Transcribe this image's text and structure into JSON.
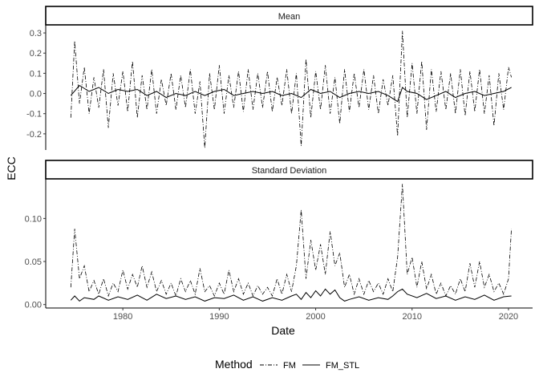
{
  "chart_data": {
    "type": "line",
    "xlabel": "Date",
    "ylabel": "ECC",
    "x_ticks": [
      "1980",
      "1990",
      "2000",
      "2010",
      "2020"
    ],
    "xlim": [
      1972.0,
      2022.5
    ],
    "legend": {
      "title": "Method",
      "position": "bottom",
      "entries": [
        {
          "name": "FM",
          "linestyle": "dashdot"
        },
        {
          "name": "FM_STL",
          "linestyle": "solid"
        }
      ]
    },
    "grid": false,
    "panels": [
      {
        "strip": "Mean",
        "ylim": [
          -0.28,
          0.34
        ],
        "y_ticks": [
          "0.3",
          "0.2",
          "0.1",
          "0.0",
          "-0.1",
          "-0.2"
        ],
        "y_tick_values": [
          0.3,
          0.2,
          0.1,
          0.0,
          -0.1,
          -0.2
        ],
        "series": [
          {
            "name": "FM",
            "x": [
              1974.6,
              1975.0,
              1975.5,
              1976.0,
              1976.5,
              1977.0,
              1977.5,
              1978.0,
              1978.5,
              1979.0,
              1979.5,
              1980.0,
              1980.5,
              1981.0,
              1981.5,
              1982.0,
              1982.5,
              1983.0,
              1983.5,
              1984.0,
              1984.5,
              1985.0,
              1985.5,
              1986.0,
              1986.5,
              1987.0,
              1987.5,
              1988.0,
              1988.5,
              1989.0,
              1989.5,
              1990.0,
              1990.5,
              1991.0,
              1991.5,
              1992.0,
              1992.5,
              1993.0,
              1993.5,
              1994.0,
              1994.5,
              1995.0,
              1995.5,
              1996.0,
              1996.5,
              1997.0,
              1997.5,
              1998.0,
              1998.5,
              1999.0,
              1999.5,
              2000.0,
              2000.5,
              2001.0,
              2001.5,
              2002.0,
              2002.5,
              2003.0,
              2003.5,
              2004.0,
              2004.5,
              2005.0,
              2005.5,
              2006.0,
              2006.5,
              2007.0,
              2007.5,
              2008.0,
              2008.5,
              2009.0,
              2009.5,
              2010.0,
              2010.5,
              2011.0,
              2011.5,
              2012.0,
              2012.5,
              2013.0,
              2013.5,
              2014.0,
              2014.5,
              2015.0,
              2015.5,
              2016.0,
              2016.5,
              2017.0,
              2017.5,
              2018.0,
              2018.5,
              2019.0,
              2019.5,
              2020.0,
              2020.3
            ],
            "y": [
              -0.12,
              0.26,
              -0.05,
              0.13,
              -0.1,
              0.08,
              -0.07,
              0.12,
              -0.17,
              0.1,
              -0.06,
              0.11,
              -0.09,
              0.16,
              -0.12,
              0.09,
              -0.08,
              0.12,
              -0.1,
              0.07,
              -0.06,
              0.1,
              -0.08,
              0.09,
              -0.07,
              0.12,
              -0.1,
              0.06,
              -0.27,
              0.1,
              -0.08,
              0.14,
              -0.1,
              0.09,
              -0.07,
              0.11,
              -0.09,
              0.12,
              -0.08,
              0.1,
              -0.07,
              0.11,
              -0.09,
              0.08,
              -0.06,
              0.12,
              -0.1,
              0.1,
              -0.26,
              0.17,
              -0.12,
              0.11,
              -0.08,
              0.14,
              -0.1,
              0.08,
              -0.15,
              0.12,
              -0.09,
              0.1,
              -0.07,
              0.12,
              -0.08,
              0.09,
              -0.1,
              0.07,
              -0.06,
              0.09,
              -0.21,
              0.31,
              -0.12,
              0.15,
              -0.1,
              0.16,
              -0.18,
              0.12,
              -0.09,
              0.11,
              -0.08,
              0.1,
              -0.1,
              0.12,
              -0.11,
              0.11,
              -0.09,
              0.12,
              -0.1,
              0.09,
              -0.16,
              0.1,
              -0.08,
              0.13,
              0.08
            ]
          },
          {
            "name": "FM_STL",
            "x": [
              1974.6,
              1975.5,
              1976.5,
              1977.5,
              1978.5,
              1979.5,
              1980.5,
              1981.5,
              1982.5,
              1983.5,
              1984.5,
              1985.5,
              1986.5,
              1987.5,
              1988.5,
              1989.5,
              1990.5,
              1991.5,
              1992.5,
              1993.5,
              1994.5,
              1995.5,
              1996.5,
              1997.5,
              1998.5,
              1999.5,
              2000.5,
              2001.5,
              2002.5,
              2003.5,
              2004.5,
              2005.5,
              2006.5,
              2007.5,
              2008.5,
              2009.0,
              2009.5,
              2010.5,
              2011.5,
              2012.5,
              2013.5,
              2014.5,
              2015.5,
              2016.5,
              2017.5,
              2018.5,
              2019.5,
              2020.3
            ],
            "y": [
              -0.01,
              0.04,
              0.01,
              0.03,
              0.0,
              0.02,
              0.01,
              0.02,
              -0.01,
              0.01,
              -0.02,
              0.0,
              -0.01,
              0.01,
              -0.01,
              0.01,
              0.02,
              -0.01,
              0.0,
              0.01,
              0.0,
              0.01,
              -0.01,
              0.0,
              -0.02,
              0.02,
              0.0,
              0.01,
              -0.02,
              0.0,
              0.01,
              0.0,
              0.01,
              -0.01,
              -0.04,
              0.03,
              0.01,
              0.0,
              -0.03,
              -0.01,
              0.01,
              -0.02,
              0.0,
              0.01,
              -0.01,
              0.0,
              0.01,
              0.03
            ]
          }
        ]
      },
      {
        "strip": "Standard Deviation",
        "ylim": [
          -0.004,
          0.146
        ],
        "y_ticks": [
          "0.10",
          "0.05",
          "0.00"
        ],
        "y_tick_values": [
          0.1,
          0.05,
          0.0
        ],
        "series": [
          {
            "name": "FM",
            "x": [
              1974.6,
              1975.0,
              1975.5,
              1976.0,
              1976.5,
              1977.0,
              1977.5,
              1978.0,
              1978.5,
              1979.0,
              1979.5,
              1980.0,
              1980.5,
              1981.0,
              1981.5,
              1982.0,
              1982.5,
              1983.0,
              1983.5,
              1984.0,
              1984.5,
              1985.0,
              1985.5,
              1986.0,
              1986.5,
              1987.0,
              1987.5,
              1988.0,
              1988.5,
              1989.0,
              1989.5,
              1990.0,
              1990.5,
              1991.0,
              1991.5,
              1992.0,
              1992.5,
              1993.0,
              1993.5,
              1994.0,
              1994.5,
              1995.0,
              1995.5,
              1996.0,
              1996.5,
              1997.0,
              1997.5,
              1998.0,
              1998.5,
              1999.0,
              1999.5,
              2000.0,
              2000.5,
              2001.0,
              2001.5,
              2002.0,
              2002.5,
              2003.0,
              2003.5,
              2004.0,
              2004.5,
              2005.0,
              2005.5,
              2006.0,
              2006.5,
              2007.0,
              2007.5,
              2008.0,
              2008.5,
              2009.0,
              2009.5,
              2010.0,
              2010.5,
              2011.0,
              2011.5,
              2012.0,
              2012.5,
              2013.0,
              2013.5,
              2014.0,
              2014.5,
              2015.0,
              2015.5,
              2016.0,
              2016.5,
              2017.0,
              2017.5,
              2018.0,
              2018.5,
              2019.0,
              2019.5,
              2020.0,
              2020.3
            ],
            "y": [
              0.02,
              0.088,
              0.03,
              0.045,
              0.015,
              0.028,
              0.012,
              0.03,
              0.01,
              0.025,
              0.015,
              0.04,
              0.018,
              0.035,
              0.02,
              0.045,
              0.02,
              0.038,
              0.015,
              0.028,
              0.012,
              0.025,
              0.01,
              0.03,
              0.015,
              0.028,
              0.012,
              0.042,
              0.015,
              0.022,
              0.01,
              0.025,
              0.012,
              0.04,
              0.015,
              0.03,
              0.012,
              0.025,
              0.01,
              0.022,
              0.012,
              0.02,
              0.01,
              0.03,
              0.012,
              0.035,
              0.015,
              0.045,
              0.11,
              0.03,
              0.075,
              0.04,
              0.07,
              0.035,
              0.085,
              0.045,
              0.06,
              0.02,
              0.035,
              0.012,
              0.03,
              0.012,
              0.028,
              0.015,
              0.025,
              0.012,
              0.03,
              0.015,
              0.055,
              0.14,
              0.035,
              0.055,
              0.02,
              0.05,
              0.018,
              0.035,
              0.012,
              0.025,
              0.01,
              0.022,
              0.012,
              0.03,
              0.015,
              0.048,
              0.02,
              0.05,
              0.02,
              0.035,
              0.015,
              0.025,
              0.012,
              0.03,
              0.088
            ]
          },
          {
            "name": "FM_STL",
            "x": [
              1974.6,
              1975.0,
              1975.5,
              1976.0,
              1977.0,
              1977.5,
              1978.5,
              1979.5,
              1980.5,
              1981.5,
              1982.5,
              1983.5,
              1984.5,
              1985.5,
              1986.5,
              1987.5,
              1988.5,
              1989.5,
              1990.5,
              1991.5,
              1992.5,
              1993.5,
              1994.5,
              1995.5,
              1996.5,
              1997.5,
              1998.0,
              1998.5,
              1999.0,
              1999.5,
              2000.0,
              2000.5,
              2001.0,
              2001.5,
              2002.0,
              2002.5,
              2003.0,
              2003.5,
              2004.5,
              2005.5,
              2006.5,
              2007.5,
              2008.0,
              2008.5,
              2009.0,
              2009.5,
              2010.5,
              2011.5,
              2012.5,
              2013.5,
              2014.5,
              2015.5,
              2016.5,
              2017.5,
              2018.5,
              2019.5,
              2020.3
            ],
            "y": [
              0.005,
              0.01,
              0.004,
              0.008,
              0.006,
              0.01,
              0.005,
              0.009,
              0.006,
              0.011,
              0.005,
              0.012,
              0.007,
              0.01,
              0.006,
              0.009,
              0.004,
              0.008,
              0.007,
              0.011,
              0.005,
              0.009,
              0.004,
              0.008,
              0.005,
              0.01,
              0.012,
              0.006,
              0.014,
              0.008,
              0.016,
              0.01,
              0.018,
              0.012,
              0.017,
              0.008,
              0.004,
              0.006,
              0.009,
              0.005,
              0.008,
              0.006,
              0.01,
              0.015,
              0.018,
              0.012,
              0.008,
              0.013,
              0.007,
              0.01,
              0.005,
              0.009,
              0.006,
              0.011,
              0.005,
              0.009,
              0.01
            ]
          }
        ]
      }
    ]
  }
}
